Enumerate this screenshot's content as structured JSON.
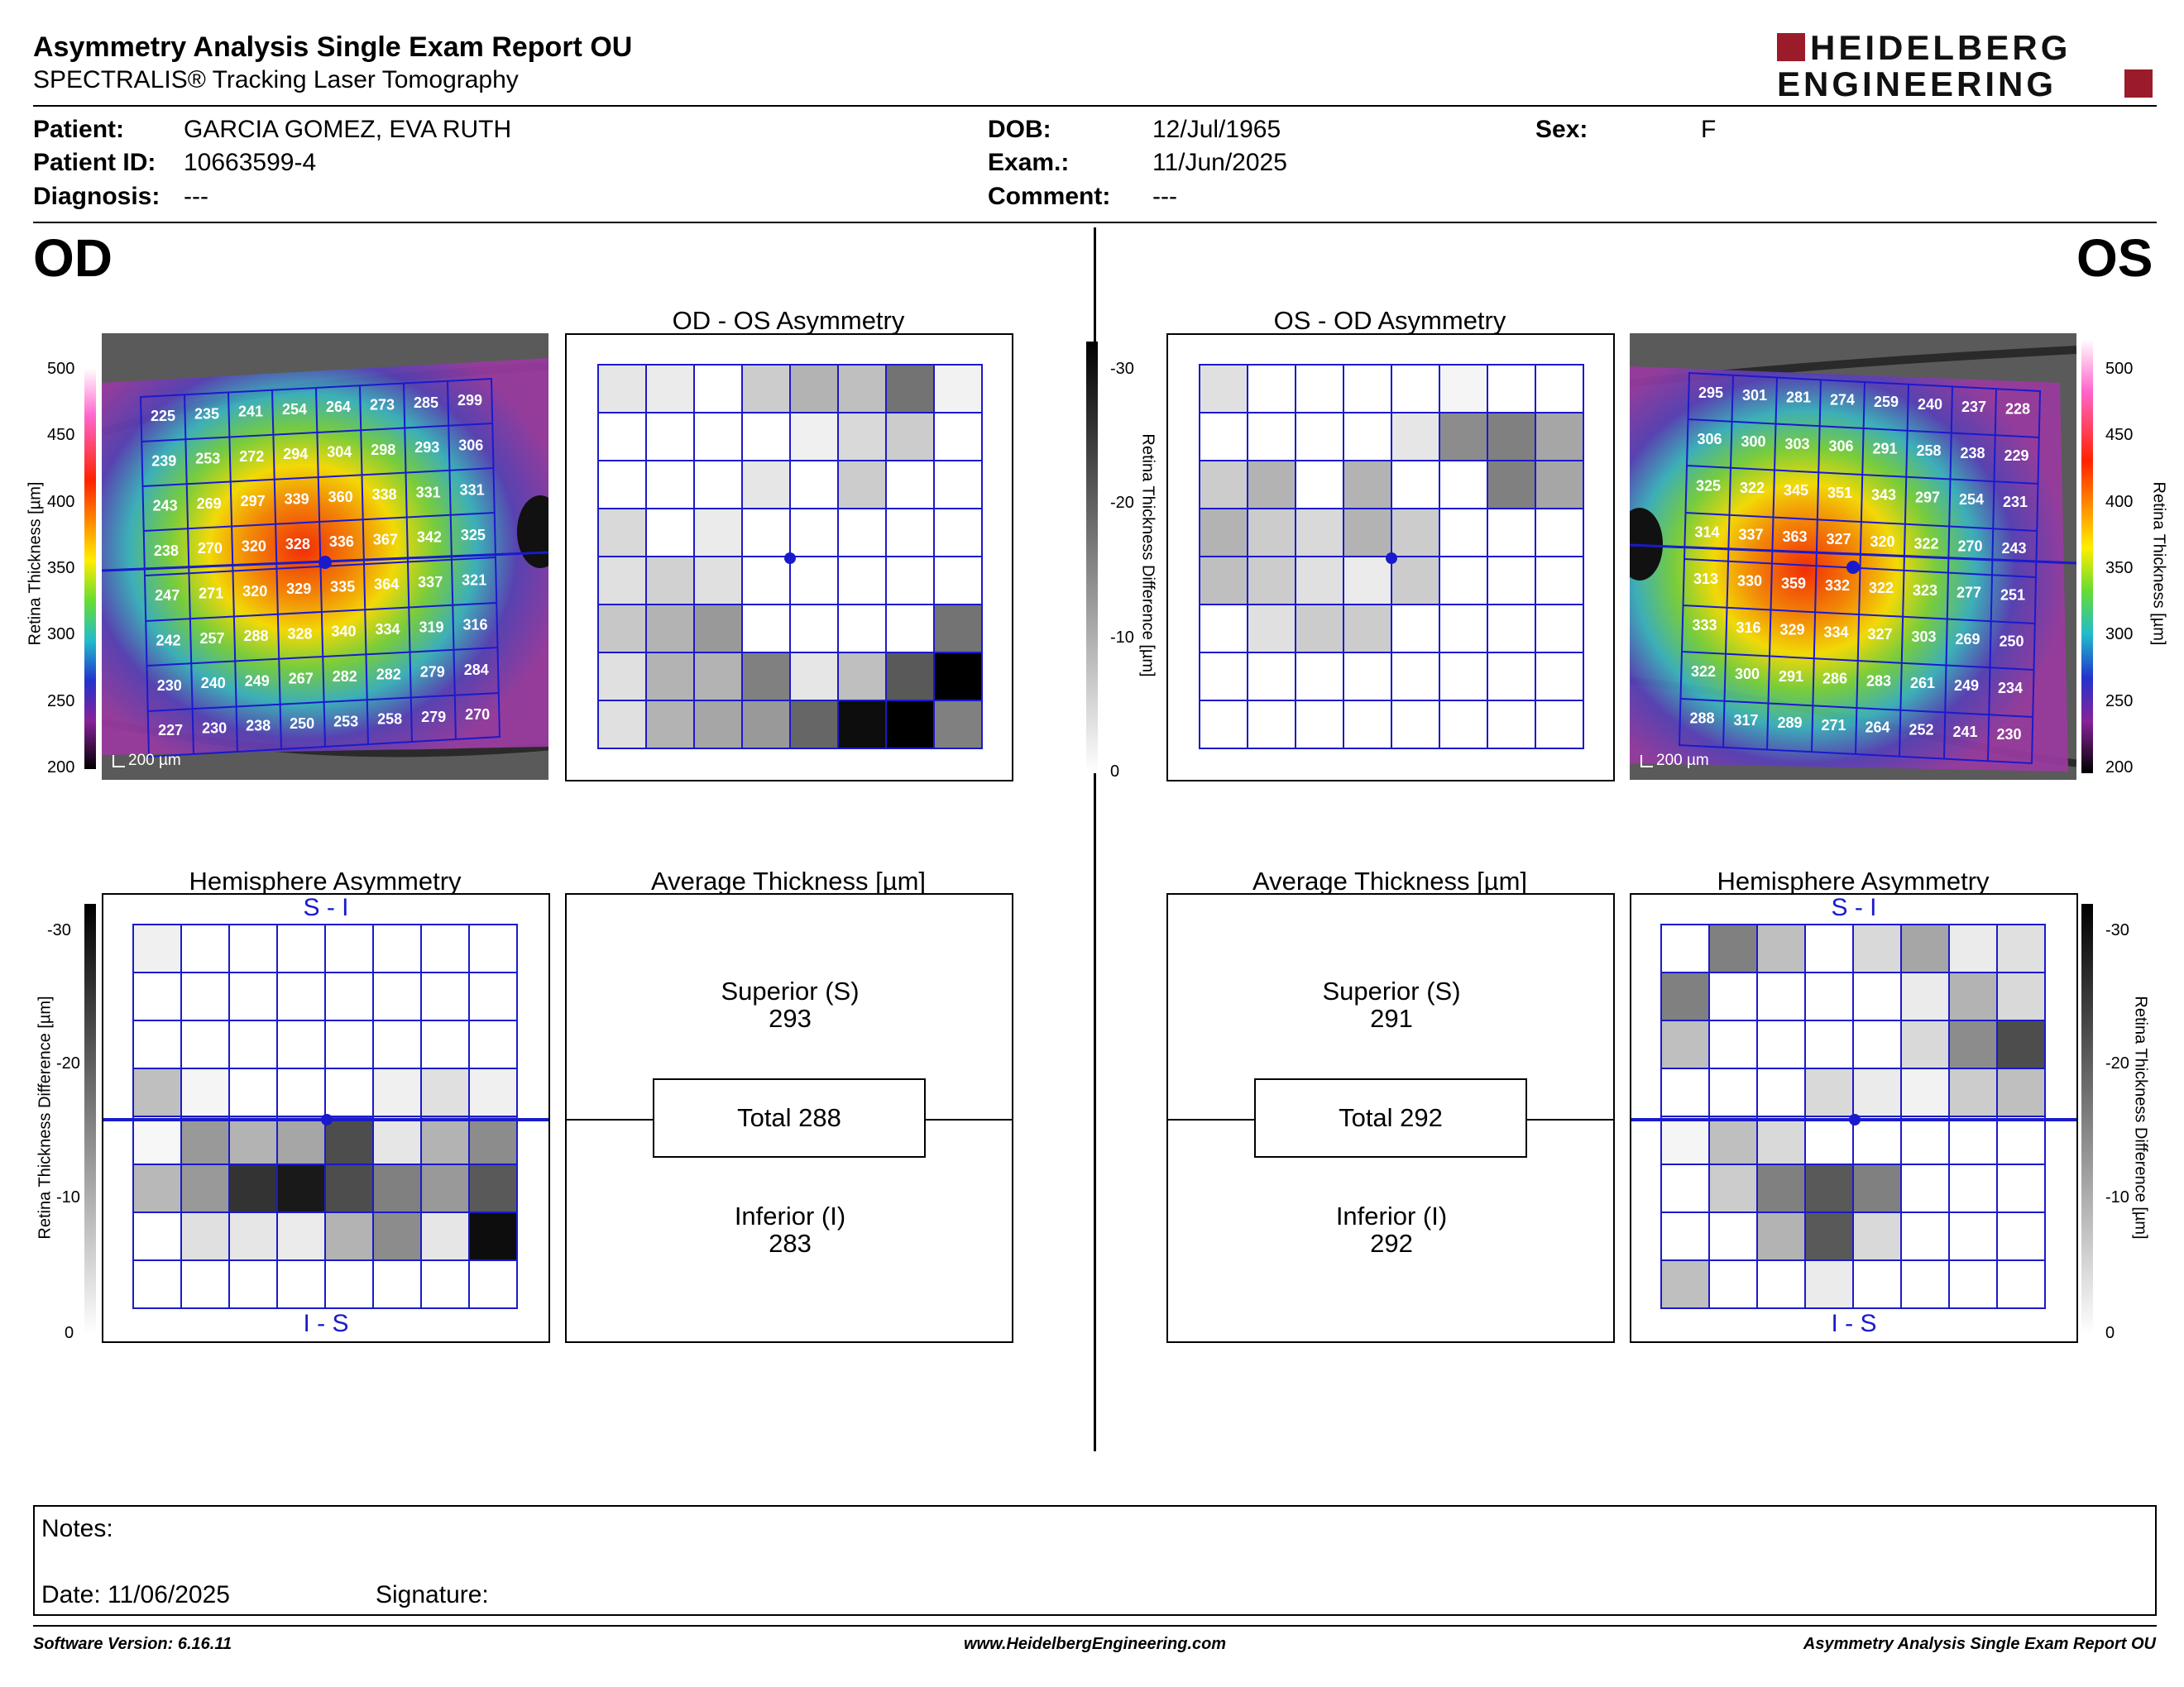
{
  "header": {
    "title": "Asymmetry Analysis Single Exam Report OU",
    "subtitle": "SPECTRALIS® Tracking Laser Tomography",
    "logo_line1": "HEIDELBERG",
    "logo_line2": "ENGINEERING"
  },
  "patient": {
    "patient_label": "Patient:",
    "patient_value": "GARCIA GOMEZ, EVA RUTH",
    "id_label": "Patient ID:",
    "id_value": "10663599-4",
    "diagnosis_label": "Diagnosis:",
    "diagnosis_value": "---",
    "dob_label": "DOB:",
    "dob_value": "12/Jul/1965",
    "exam_label": "Exam.:",
    "exam_value": "11/Jun/2025",
    "comment_label": "Comment:",
    "comment_value": "---",
    "sex_label": "Sex:",
    "sex_value": "F"
  },
  "eyes": {
    "od": "OD",
    "os": "OS"
  },
  "panels": {
    "od_os_title": "OD - OS Asymmetry",
    "os_od_title": "OS - OD Asymmetry",
    "hemi_title": "Hemisphere Asymmetry",
    "avg_title": "Average Thickness [µm]",
    "si_label": "S - I",
    "is_label": "I - S",
    "scale_label": "200 µm",
    "thickness_axis": "Retina Thickness [µm]",
    "diff_axis": "Retina Thickness Difference [µm]"
  },
  "thickness_ticks": [
    "500",
    "450",
    "400",
    "350",
    "300",
    "250",
    "200"
  ],
  "diff_ticks_right": [
    "-30",
    "-20",
    "-10",
    "0"
  ],
  "diff_ticks_left": [
    "-30",
    "-20",
    "-10",
    "0"
  ],
  "average": {
    "od": {
      "superior_label": "Superior (S)",
      "superior": "293",
      "total": "Total 288",
      "inferior_label": "Inferior (I)",
      "inferior": "283"
    },
    "os": {
      "superior_label": "Superior (S)",
      "superior": "291",
      "total": "Total 292",
      "inferior_label": "Inferior (I)",
      "inferior": "292"
    }
  },
  "od_thickness_grid": [
    [
      "225",
      "235",
      "241",
      "254",
      "264",
      "273",
      "285",
      "299"
    ],
    [
      "239",
      "253",
      "272",
      "294",
      "304",
      "298",
      "293",
      "306"
    ],
    [
      "243",
      "269",
      "297",
      "339",
      "360",
      "338",
      "331",
      "331"
    ],
    [
      "238",
      "270",
      "320",
      "328",
      "336",
      "367",
      "342",
      "325"
    ],
    [
      "247",
      "271",
      "320",
      "329",
      "335",
      "364",
      "337",
      "321"
    ],
    [
      "242",
      "257",
      "288",
      "328",
      "340",
      "334",
      "319",
      "316"
    ],
    [
      "230",
      "240",
      "249",
      "267",
      "282",
      "282",
      "279",
      "284"
    ],
    [
      "227",
      "230",
      "238",
      "250",
      "253",
      "258",
      "279",
      "270"
    ]
  ],
  "os_thickness_grid": [
    [
      "295",
      "301",
      "281",
      "274",
      "259",
      "240",
      "237",
      "228"
    ],
    [
      "306",
      "300",
      "303",
      "306",
      "291",
      "258",
      "238",
      "229"
    ],
    [
      "325",
      "322",
      "345",
      "351",
      "343",
      "297",
      "254",
      "231"
    ],
    [
      "314",
      "337",
      "363",
      "327",
      "320",
      "322",
      "270",
      "243"
    ],
    [
      "313",
      "330",
      "359",
      "332",
      "322",
      "323",
      "277",
      "251"
    ],
    [
      "333",
      "316",
      "329",
      "334",
      "327",
      "303",
      "269",
      "250"
    ],
    [
      "322",
      "300",
      "291",
      "286",
      "283",
      "261",
      "249",
      "234"
    ],
    [
      "288",
      "317",
      "289",
      "271",
      "264",
      "252",
      "241",
      "230"
    ]
  ],
  "od_os_asym_grey": [
    [
      0.1,
      0.08,
      0,
      0.2,
      0.3,
      0.25,
      0.55,
      0.05
    ],
    [
      0,
      0,
      0,
      0,
      0.06,
      0.15,
      0.2,
      0
    ],
    [
      0,
      0,
      0,
      0.1,
      0,
      0.2,
      0,
      0
    ],
    [
      0.15,
      0,
      0.08,
      0,
      0,
      0,
      0,
      0
    ],
    [
      0.12,
      0.18,
      0.12,
      0,
      0,
      0,
      0,
      0
    ],
    [
      0.22,
      0.3,
      0.4,
      0,
      0,
      0,
      0,
      0.55
    ],
    [
      0.12,
      0.3,
      0.3,
      0.5,
      0.1,
      0.25,
      0.65,
      1.0
    ],
    [
      0.12,
      0.3,
      0.35,
      0.4,
      0.6,
      0.95,
      1.0,
      0.5
    ]
  ],
  "os_od_asym_grey": [
    [
      0.12,
      0,
      0,
      0,
      0,
      0.04,
      0,
      0
    ],
    [
      0,
      0,
      0,
      0,
      0.1,
      0.45,
      0.5,
      0.35
    ],
    [
      0.2,
      0.3,
      0,
      0.3,
      0,
      0,
      0.5,
      0.35
    ],
    [
      0.3,
      0.2,
      0.15,
      0.3,
      0.2,
      0,
      0,
      0
    ],
    [
      0.25,
      0.2,
      0.12,
      0.08,
      0.2,
      0,
      0,
      0
    ],
    [
      0,
      0.12,
      0.2,
      0.2,
      0,
      0,
      0,
      0
    ],
    [
      0,
      0,
      0,
      0,
      0,
      0,
      0,
      0
    ],
    [
      0,
      0,
      0,
      0,
      0,
      0,
      0,
      0
    ]
  ],
  "od_hemi_grey": [
    [
      0.06,
      0,
      0,
      0,
      0,
      0,
      0,
      0
    ],
    [
      0,
      0,
      0,
      0,
      0,
      0,
      0,
      0
    ],
    [
      0,
      0,
      0,
      0,
      0,
      0,
      0,
      0
    ],
    [
      0.25,
      0.04,
      0,
      0,
      0,
      0.06,
      0.12,
      0.06
    ],
    [
      0.03,
      0.4,
      0.3,
      0.35,
      0.7,
      0.1,
      0.3,
      0.45
    ],
    [
      0.28,
      0.4,
      0.8,
      0.9,
      0.7,
      0.5,
      0.4,
      0.65
    ],
    [
      0,
      0.12,
      0.1,
      0.08,
      0.3,
      0.45,
      0.1,
      0.95
    ],
    [
      0,
      0,
      0,
      0,
      0,
      0,
      0,
      0
    ]
  ],
  "os_hemi_grey": [
    [
      0,
      0.5,
      0.25,
      0,
      0.15,
      0.35,
      0.08,
      0.12
    ],
    [
      0.5,
      0,
      0,
      0,
      0,
      0.08,
      0.3,
      0.15
    ],
    [
      0.25,
      0,
      0,
      0,
      0,
      0.15,
      0.45,
      0.7
    ],
    [
      0,
      0,
      0,
      0.15,
      0.08,
      0.05,
      0.2,
      0.25
    ],
    [
      0.04,
      0.25,
      0.15,
      0,
      0,
      0,
      0,
      0
    ],
    [
      0,
      0.2,
      0.5,
      0.65,
      0.5,
      0,
      0,
      0
    ],
    [
      0,
      0,
      0.3,
      0.65,
      0.15,
      0,
      0,
      0
    ],
    [
      0.25,
      0,
      0,
      0.08,
      0,
      0,
      0,
      0
    ]
  ],
  "notes": {
    "notes_label": "Notes:",
    "date_label": "Date: 11/06/2025",
    "signature_label": "Signature:"
  },
  "footer": {
    "software": "Software Version: 6.16.11",
    "website": "www.HeidelbergEngineering.com",
    "report_name": "Asymmetry Analysis Single Exam Report OU"
  },
  "colors": {
    "grid_blue": "#1a1acc",
    "logo_red": "#9b1b2a"
  }
}
